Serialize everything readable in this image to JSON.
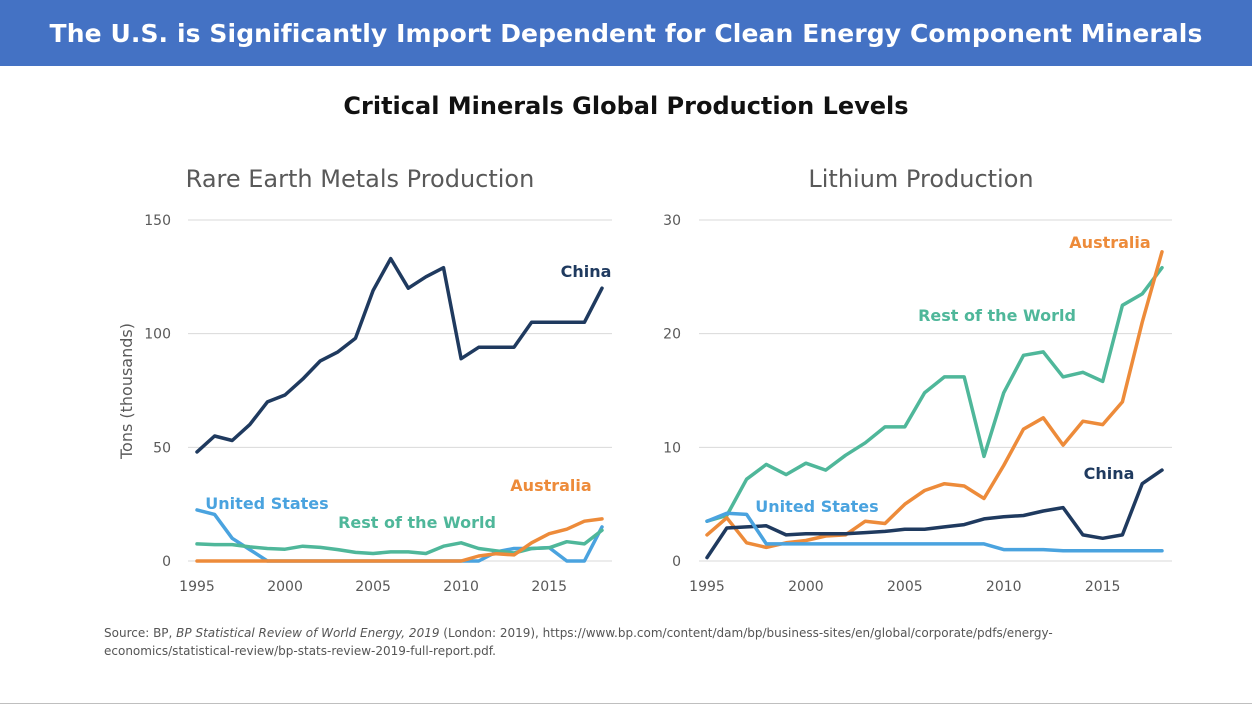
{
  "slide": {
    "banner": "The U.S. is Significantly Import Dependent for Clean Energy Component Minerals",
    "subtitle": "Critical Minerals Global Production Levels",
    "source_prefix": "Source: BP, ",
    "source_italic": "BP Statistical Review of World Energy, 2019",
    "source_suffix": " (London: 2019), https://www.bp.com/content/dam/bp/business-sites/en/global/corporate/pdfs/energy-economics/statistical-review/bp-stats-review-2019-full-report.pdf."
  },
  "colors": {
    "china": "#1f3a5f",
    "australia": "#ed8b3a",
    "rest_of_world": "#4fb79a",
    "united_states": "#4aa3df",
    "grid": "#d9d9d9",
    "axis_text": "#595959"
  },
  "chart_data": [
    {
      "type": "line",
      "title": "Rare Earth Metals Production",
      "ylabel": "Tons (thousands)",
      "xlim": [
        1995,
        2018
      ],
      "ylim": [
        0,
        150
      ],
      "xticks": [
        1995,
        2000,
        2005,
        2010,
        2015
      ],
      "yticks": [
        0,
        50,
        100,
        150
      ],
      "grid": true,
      "x": [
        1995,
        1996,
        1997,
        1998,
        1999,
        2000,
        2001,
        2002,
        2003,
        2004,
        2005,
        2006,
        2007,
        2008,
        2009,
        2010,
        2011,
        2012,
        2013,
        2014,
        2015,
        2016,
        2017,
        2018
      ],
      "series": [
        {
          "name": "China",
          "color_key": "china",
          "values": [
            48,
            55,
            53,
            60,
            70,
            73,
            80,
            88,
            92,
            98,
            119,
            133,
            120,
            125,
            129,
            89,
            94,
            94,
            94,
            105,
            105,
            105,
            105,
            120
          ]
        },
        {
          "name": "United States",
          "color_key": "united_states",
          "values": [
            22.5,
            20.5,
            10,
            5,
            0,
            0,
            0,
            0,
            0,
            0,
            0,
            0,
            0,
            0,
            0,
            0,
            0,
            4,
            5.5,
            5.5,
            5.9,
            0,
            0,
            15
          ]
        },
        {
          "name": "Rest of the World",
          "color_key": "rest_of_world",
          "values": [
            7.5,
            7.2,
            7.2,
            6.2,
            5.5,
            5.2,
            6.5,
            6,
            5,
            3.8,
            3.3,
            4,
            4,
            3.3,
            6.5,
            8,
            5.5,
            4.5,
            3.5,
            5.5,
            5.8,
            8.5,
            7.5,
            13.5
          ]
        },
        {
          "name": "Australia",
          "color_key": "australia",
          "values": [
            0,
            0,
            0,
            0,
            0,
            0,
            0,
            0,
            0,
            0,
            0,
            0,
            0,
            0,
            0,
            0,
            2.2,
            3.2,
            2.7,
            8,
            12,
            14,
            17.5,
            18.5
          ]
        }
      ]
    },
    {
      "type": "line",
      "title": "Lithium Production",
      "ylabel": "",
      "xlim": [
        1995,
        2018
      ],
      "ylim": [
        0,
        30
      ],
      "xticks": [
        1995,
        2000,
        2005,
        2010,
        2015
      ],
      "yticks": [
        0,
        10,
        20,
        30
      ],
      "grid": true,
      "x": [
        1995,
        1996,
        1997,
        1998,
        1999,
        2000,
        2001,
        2002,
        2003,
        2004,
        2005,
        2006,
        2007,
        2008,
        2009,
        2010,
        2011,
        2012,
        2013,
        2014,
        2015,
        2016,
        2017,
        2018
      ],
      "series": [
        {
          "name": "Rest of the World",
          "color_key": "rest_of_world",
          "values": [
            3.5,
            4,
            7.2,
            8.5,
            7.6,
            8.6,
            8,
            9.3,
            10.4,
            11.8,
            11.8,
            14.8,
            16.2,
            16.2,
            9.2,
            14.8,
            18.1,
            18.4,
            16.2,
            16.6,
            15.8,
            22.5,
            23.5,
            25.8
          ]
        },
        {
          "name": "Australia",
          "color_key": "australia",
          "values": [
            2.3,
            3.8,
            1.6,
            1.2,
            1.6,
            1.8,
            2.2,
            2.3,
            3.5,
            3.3,
            5,
            6.2,
            6.8,
            6.6,
            5.5,
            8.4,
            11.6,
            12.6,
            10.2,
            12.3,
            12,
            14,
            21,
            27.2
          ]
        },
        {
          "name": "China",
          "color_key": "china",
          "values": [
            0.3,
            2.9,
            3,
            3.1,
            2.3,
            2.4,
            2.4,
            2.4,
            2.5,
            2.6,
            2.8,
            2.8,
            3,
            3.2,
            3.7,
            3.9,
            4,
            4.4,
            4.7,
            2.3,
            2,
            2.3,
            6.8,
            8
          ]
        },
        {
          "name": "United States",
          "color_key": "united_states",
          "values": [
            3.5,
            4.2,
            4.1,
            1.5,
            1.5,
            1.5,
            1.5,
            1.5,
            1.5,
            1.5,
            1.5,
            1.5,
            1.5,
            1.5,
            1.5,
            1,
            1,
            1,
            0.9,
            0.9,
            0.9,
            0.9,
            0.9,
            0.9
          ]
        }
      ]
    }
  ]
}
